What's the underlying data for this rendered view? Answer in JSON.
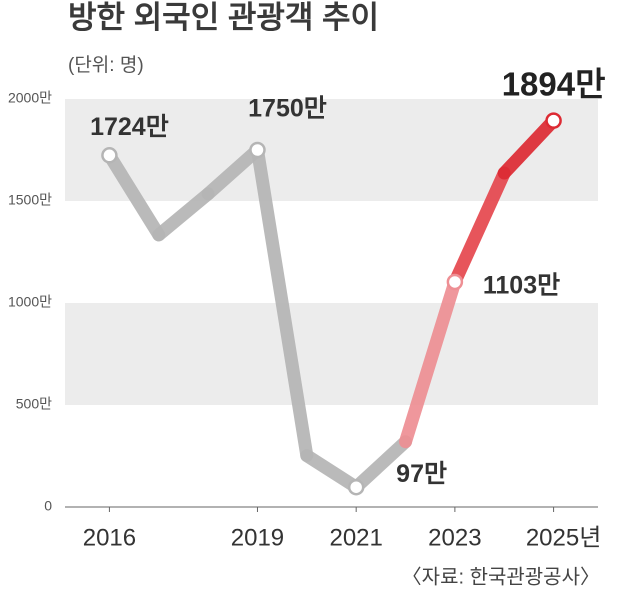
{
  "chart_data": {
    "type": "line",
    "title": "방한 외국인 관광객 추이",
    "subtitle": "(단위: 명)",
    "source": "〈자료: 한국관광공사〉",
    "x": [
      2016,
      2017,
      2018,
      2019,
      2020,
      2021,
      2022,
      2023,
      2024,
      2025
    ],
    "series": [
      {
        "values": [
          1724,
          1334,
          1535,
          1750,
          252,
          97,
          320,
          1103,
          1637,
          1894
        ],
        "value_labels": [
          "1724만",
          null,
          null,
          "1750만",
          null,
          "97만",
          null,
          "1103만",
          null,
          "1894만"
        ],
        "color": "#b5b5b5",
        "segment_colors": [
          "#b5b5b5",
          "#b5b5b5",
          "#b5b5b5",
          "#b5b5b5",
          "#b5b5b5",
          "#b5b5b5",
          "#ee8f94",
          "#e5474e",
          "#dd2a33"
        ]
      }
    ],
    "xlim": [
      2015.1,
      2025.9
    ],
    "xticks": [
      2016,
      2019,
      2021,
      2023,
      {
        "value": 2025,
        "label": "2025년"
      }
    ],
    "ylim": [
      0,
      2000
    ],
    "yticks": [
      0,
      {
        "value": 500,
        "label": "500만"
      },
      {
        "value": 1000,
        "label": "1000만"
      },
      {
        "value": 1500,
        "label": "1500만"
      },
      {
        "value": 2000,
        "label": "2000만"
      }
    ],
    "bands": true,
    "band_color": "#ececec"
  }
}
